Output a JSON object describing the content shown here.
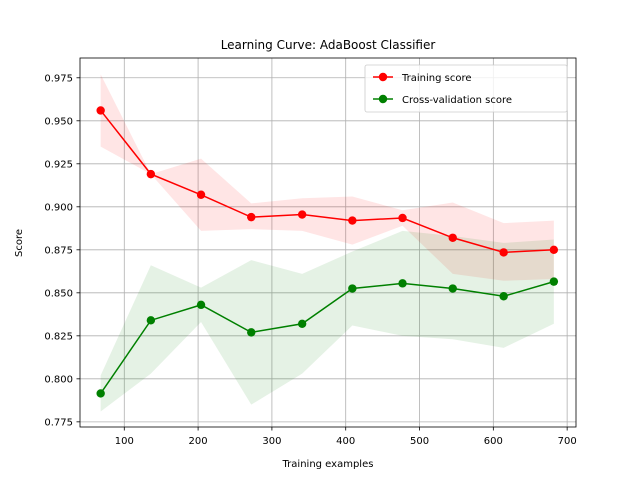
{
  "chart_data": {
    "type": "line",
    "title": "Learning Curve: AdaBoost Classifier",
    "xlabel": "Training examples",
    "ylabel": "Score",
    "xlim": [
      40,
      712
    ],
    "ylim": [
      0.772,
      0.9865
    ],
    "xticks": [
      100,
      200,
      300,
      400,
      500,
      600,
      700
    ],
    "yticks": [
      0.775,
      0.8,
      0.825,
      0.85,
      0.875,
      0.9,
      0.925,
      0.95,
      0.975
    ],
    "ytick_labels": [
      "0.775",
      "0.800",
      "0.825",
      "0.850",
      "0.875",
      "0.900",
      "0.925",
      "0.950",
      "0.975"
    ],
    "grid": true,
    "legend_position": "top-right",
    "x": [
      68,
      136,
      204,
      272,
      341,
      409,
      477,
      545,
      614,
      682
    ],
    "series": [
      {
        "name": "Training score",
        "color": "#ff0000",
        "values": [
          0.956,
          0.919,
          0.907,
          0.894,
          0.8955,
          0.892,
          0.8935,
          0.882,
          0.8735,
          0.875
        ],
        "band_upper": [
          0.977,
          0.919,
          0.928,
          0.902,
          0.905,
          0.906,
          0.898,
          0.9025,
          0.8905,
          0.892
        ],
        "band_lower": [
          0.935,
          0.919,
          0.886,
          0.887,
          0.886,
          0.878,
          0.889,
          0.861,
          0.857,
          0.858
        ]
      },
      {
        "name": "Cross-validation score",
        "color": "#008000",
        "values": [
          0.7915,
          0.834,
          0.843,
          0.827,
          0.832,
          0.8525,
          0.8555,
          0.8525,
          0.848,
          0.8565
        ],
        "band_upper": [
          0.802,
          0.866,
          0.853,
          0.869,
          0.861,
          0.874,
          0.886,
          0.883,
          0.879,
          0.881
        ],
        "band_lower": [
          0.781,
          0.803,
          0.833,
          0.785,
          0.803,
          0.831,
          0.825,
          0.823,
          0.818,
          0.832
        ]
      }
    ]
  }
}
